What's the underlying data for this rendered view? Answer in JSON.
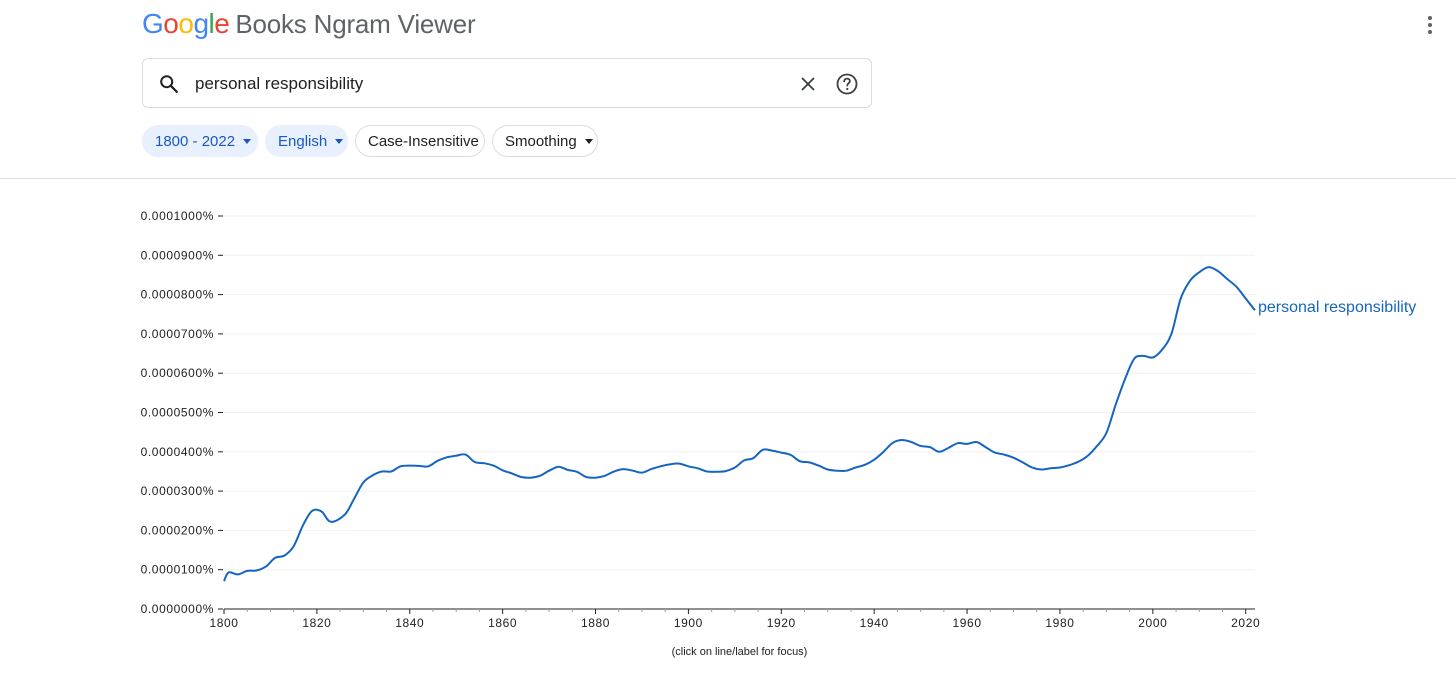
{
  "header": {
    "logo_letters": [
      {
        "char": "G",
        "color": "#4285F4"
      },
      {
        "char": "o",
        "color": "#EA4335"
      },
      {
        "char": "o",
        "color": "#FBBC05"
      },
      {
        "char": "g",
        "color": "#4285F4"
      },
      {
        "char": "l",
        "color": "#34A853"
      },
      {
        "char": "e",
        "color": "#EA4335"
      }
    ],
    "product_name": "Books Ngram Viewer",
    "menu_icon": "more-vertical-icon"
  },
  "search": {
    "value": "personal responsibility",
    "search_icon": "search-icon",
    "clear_icon": "close-icon",
    "help_icon": "help-icon"
  },
  "filters": {
    "year_range": "1800 - 2022",
    "corpus": "English",
    "case": "Case-Insensitive",
    "smoothing": "Smoothing"
  },
  "colors": {
    "accent": "#1a57c5",
    "chip_bg": "#e8f0fe",
    "series": "#1565c0"
  },
  "chart_data": {
    "type": "line",
    "title": "",
    "xlabel": "",
    "ylabel": "",
    "x_range": [
      1800,
      2022
    ],
    "ylim": [
      0,
      0.0001
    ],
    "x_ticks": [
      1800,
      1820,
      1840,
      1860,
      1880,
      1900,
      1920,
      1940,
      1960,
      1980,
      2000,
      2020
    ],
    "x_tick_labels": [
      "1800",
      "1820",
      "1840",
      "1860",
      "1880",
      "1900",
      "1920",
      "1940",
      "1960",
      "1980",
      "2000",
      "2020"
    ],
    "y_tick_labels": [
      "0.0000000%",
      "0.0000100%",
      "0.0000200%",
      "0.0000300%",
      "0.0000400%",
      "0.0000500%",
      "0.0000600%",
      "0.0000700%",
      "0.0000800%",
      "0.0000900%",
      "0.0001000%"
    ],
    "grid": true,
    "note": "(click on line/label for focus)",
    "series": [
      {
        "name": "personal responsibility",
        "color": "#1565c0",
        "points": [
          [
            1800,
            7.1e-06
          ],
          [
            1801,
            9.3e-06
          ],
          [
            1803,
            8.8e-06
          ],
          [
            1805,
            9.7e-06
          ],
          [
            1807,
            9.8e-06
          ],
          [
            1809,
            1.08e-05
          ],
          [
            1811,
            1.3e-05
          ],
          [
            1813,
            1.36e-05
          ],
          [
            1815,
            1.6e-05
          ],
          [
            1817,
            2.13e-05
          ],
          [
            1819,
            2.5e-05
          ],
          [
            1821,
            2.48e-05
          ],
          [
            1823,
            2.22e-05
          ],
          [
            1826,
            2.4e-05
          ],
          [
            1828,
            2.8e-05
          ],
          [
            1830,
            3.22e-05
          ],
          [
            1832,
            3.4e-05
          ],
          [
            1834,
            3.5e-05
          ],
          [
            1836,
            3.5e-05
          ],
          [
            1838,
            3.63e-05
          ],
          [
            1840,
            3.65e-05
          ],
          [
            1842,
            3.64e-05
          ],
          [
            1844,
            3.63e-05
          ],
          [
            1846,
            3.77e-05
          ],
          [
            1848,
            3.86e-05
          ],
          [
            1850,
            3.9e-05
          ],
          [
            1852,
            3.93e-05
          ],
          [
            1854,
            3.74e-05
          ],
          [
            1856,
            3.71e-05
          ],
          [
            1858,
            3.65e-05
          ],
          [
            1860,
            3.53e-05
          ],
          [
            1862,
            3.45e-05
          ],
          [
            1864,
            3.36e-05
          ],
          [
            1866,
            3.34e-05
          ],
          [
            1868,
            3.39e-05
          ],
          [
            1870,
            3.52e-05
          ],
          [
            1872,
            3.62e-05
          ],
          [
            1874,
            3.54e-05
          ],
          [
            1876,
            3.49e-05
          ],
          [
            1878,
            3.36e-05
          ],
          [
            1880,
            3.34e-05
          ],
          [
            1882,
            3.39e-05
          ],
          [
            1884,
            3.5e-05
          ],
          [
            1886,
            3.56e-05
          ],
          [
            1888,
            3.52e-05
          ],
          [
            1890,
            3.47e-05
          ],
          [
            1892,
            3.56e-05
          ],
          [
            1894,
            3.63e-05
          ],
          [
            1896,
            3.68e-05
          ],
          [
            1898,
            3.7e-05
          ],
          [
            1900,
            3.63e-05
          ],
          [
            1902,
            3.58e-05
          ],
          [
            1904,
            3.5e-05
          ],
          [
            1906,
            3.49e-05
          ],
          [
            1908,
            3.51e-05
          ],
          [
            1910,
            3.6e-05
          ],
          [
            1912,
            3.78e-05
          ],
          [
            1914,
            3.84e-05
          ],
          [
            1916,
            4.05e-05
          ],
          [
            1918,
            4.03e-05
          ],
          [
            1920,
            3.98e-05
          ],
          [
            1922,
            3.92e-05
          ],
          [
            1924,
            3.76e-05
          ],
          [
            1926,
            3.73e-05
          ],
          [
            1928,
            3.65e-05
          ],
          [
            1930,
            3.55e-05
          ],
          [
            1932,
            3.52e-05
          ],
          [
            1934,
            3.52e-05
          ],
          [
            1936,
            3.6e-05
          ],
          [
            1938,
            3.67e-05
          ],
          [
            1940,
            3.8e-05
          ],
          [
            1942,
            4e-05
          ],
          [
            1944,
            4.23e-05
          ],
          [
            1946,
            4.3e-05
          ],
          [
            1948,
            4.25e-05
          ],
          [
            1950,
            4.15e-05
          ],
          [
            1952,
            4.12e-05
          ],
          [
            1954,
            4e-05
          ],
          [
            1956,
            4.1e-05
          ],
          [
            1958,
            4.22e-05
          ],
          [
            1960,
            4.2e-05
          ],
          [
            1962,
            4.25e-05
          ],
          [
            1964,
            4.12e-05
          ],
          [
            1966,
            3.98e-05
          ],
          [
            1968,
            3.93e-05
          ],
          [
            1970,
            3.85e-05
          ],
          [
            1972,
            3.73e-05
          ],
          [
            1974,
            3.6e-05
          ],
          [
            1976,
            3.55e-05
          ],
          [
            1978,
            3.58e-05
          ],
          [
            1980,
            3.6e-05
          ],
          [
            1982,
            3.66e-05
          ],
          [
            1984,
            3.75e-05
          ],
          [
            1986,
            3.9e-05
          ],
          [
            1988,
            4.15e-05
          ],
          [
            1990,
            4.48e-05
          ],
          [
            1992,
            5.2e-05
          ],
          [
            1994,
            5.85e-05
          ],
          [
            1996,
            6.37e-05
          ],
          [
            1998,
            6.44e-05
          ],
          [
            2000,
            6.4e-05
          ],
          [
            2002,
            6.6e-05
          ],
          [
            2004,
            7e-05
          ],
          [
            2006,
            7.9e-05
          ],
          [
            2008,
            8.35e-05
          ],
          [
            2010,
            8.57e-05
          ],
          [
            2012,
            8.7e-05
          ],
          [
            2014,
            8.6e-05
          ],
          [
            2016,
            8.4e-05
          ],
          [
            2018,
            8.2e-05
          ],
          [
            2020,
            7.9e-05
          ],
          [
            2022,
            7.6e-05
          ]
        ]
      }
    ]
  }
}
